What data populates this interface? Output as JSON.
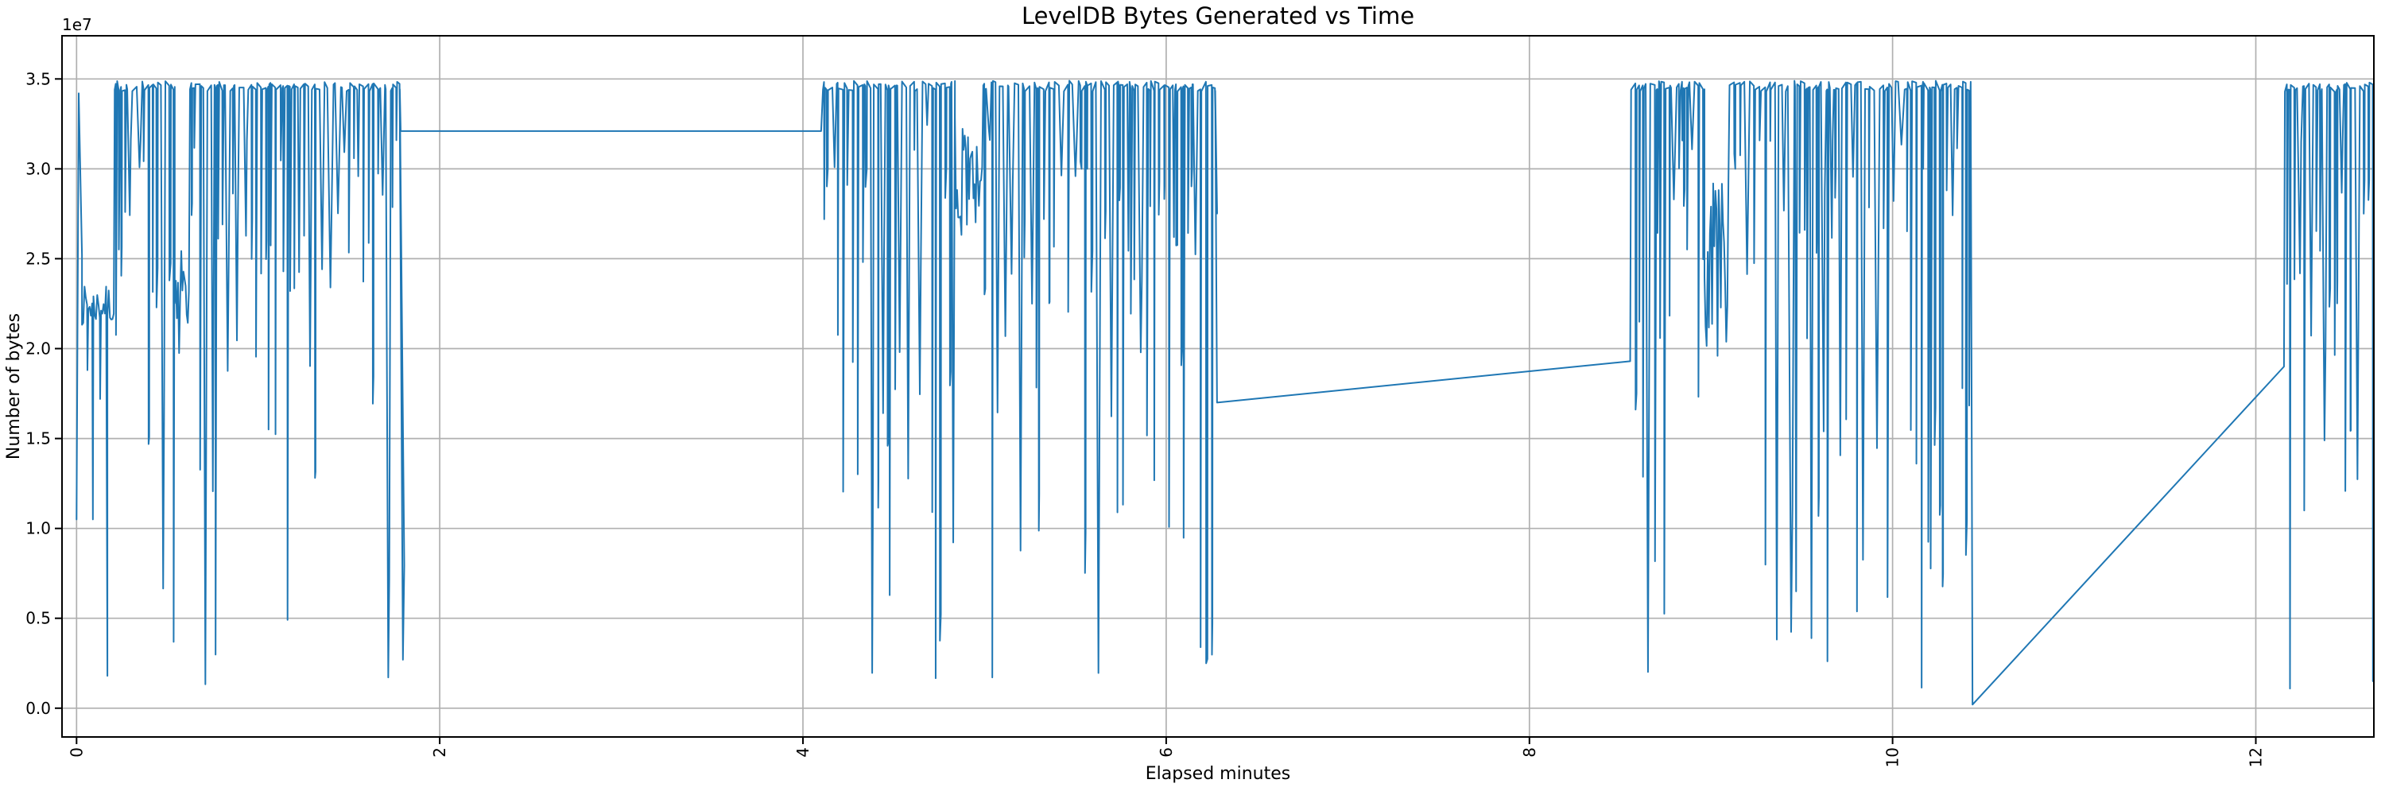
{
  "chart": {
    "title": "LevelDB Bytes Generated vs Time",
    "xlabel": "Elapsed minutes",
    "ylabel": "Number of bytes",
    "offset_label": "1e7"
  },
  "chart_data": {
    "type": "line",
    "title": "LevelDB Bytes Generated vs Time",
    "xlabel": "Elapsed minutes",
    "ylabel": "Number of bytes",
    "x_ticks": [
      0,
      2,
      4,
      6,
      8,
      10,
      12
    ],
    "x_tick_rotation_deg": 90,
    "y_ticks_e7": [
      0.0,
      0.5,
      1.0,
      1.5,
      2.0,
      2.5,
      3.0,
      3.5
    ],
    "y_offset_text": "1e7",
    "y_unit_multiplier": 10000000,
    "xlim": [
      -0.08,
      12.65
    ],
    "ylim_e7": [
      -0.16,
      3.74
    ],
    "grid": true,
    "legend": false,
    "line_color": "#1f77b4",
    "grid_color": "#b0b0b0",
    "spine_color": "#000000",
    "background_color": "#ffffff",
    "series_spec": {
      "unit": "1e7 bytes (y values below are in units of 10^7 bytes, x in minutes)",
      "description": "Single dense line. Four oscillation bursts where bytes swing between ~3.46e7 tops and dips reaching near 0, separated by idle stretches: a flat plateau at 3.21e7 (min 1.78-4.11), a slow ramp 1.70e7->1.93e7 (min 6.28-8.56), and a long ramp 0.02e7->1.90e7 (min 10.44-12.16). Data is clipped at the right axis edge mid-burst.",
      "segments": [
        {
          "type": "points",
          "pts": [
            [
              0.0,
              1.05
            ],
            [
              0.012,
              3.42
            ],
            [
              0.03,
              2.52
            ]
          ]
        },
        {
          "type": "noise",
          "x0": 0.03,
          "x1": 0.21,
          "base": 2.24,
          "amp": 0.11,
          "step": 0.007,
          "seed": 7,
          "dips": [
            [
              0.06,
              1.88
            ],
            [
              0.09,
              1.05
            ],
            [
              0.13,
              1.72
            ],
            [
              0.17,
              0.18
            ]
          ]
        },
        {
          "type": "burst",
          "x0": 0.21,
          "x1": 1.78,
          "top": 3.46,
          "seed": 101,
          "clusters": [
            {
              "x": 0.52,
              "w": 0.1,
              "base": 2.35,
              "amp": 0.45
            }
          ]
        },
        {
          "type": "points",
          "pts": [
            [
              1.785,
              3.21
            ],
            [
              4.1,
              3.21
            ]
          ]
        },
        {
          "type": "burst",
          "x0": 4.11,
          "x1": 6.27,
          "top": 3.46,
          "seed": 202,
          "clusters": [
            {
              "x": 4.82,
              "w": 0.17,
              "base": 2.95,
              "amp": 0.35
            }
          ]
        },
        {
          "type": "points",
          "pts": [
            [
              6.28,
              1.7
            ],
            [
              8.555,
              1.93
            ]
          ]
        },
        {
          "type": "burst",
          "x0": 8.56,
          "x1": 10.43,
          "top": 3.46,
          "seed": 303,
          "clusters": [
            {
              "x": 8.95,
              "w": 0.15,
              "base": 2.5,
              "amp": 0.55
            }
          ]
        },
        {
          "type": "points",
          "pts": [
            [
              10.44,
              0.02
            ],
            [
              12.155,
              1.9
            ]
          ]
        },
        {
          "type": "burst",
          "x0": 12.16,
          "x1": 12.66,
          "top": 3.45,
          "seed": 404,
          "clusters": []
        }
      ]
    },
    "key_points_e7": [
      [
        0.0,
        1.05
      ],
      [
        0.012,
        3.42
      ],
      [
        0.1,
        2.24
      ],
      [
        0.21,
        3.46
      ],
      [
        1.78,
        3.21
      ],
      [
        4.11,
        3.21
      ],
      [
        4.11,
        3.46
      ],
      [
        6.27,
        3.46
      ],
      [
        6.28,
        1.7
      ],
      [
        8.555,
        1.93
      ],
      [
        8.56,
        3.46
      ],
      [
        10.43,
        3.46
      ],
      [
        10.44,
        0.02
      ],
      [
        12.155,
        1.9
      ],
      [
        12.16,
        3.45
      ],
      [
        12.65,
        3.45
      ]
    ]
  }
}
